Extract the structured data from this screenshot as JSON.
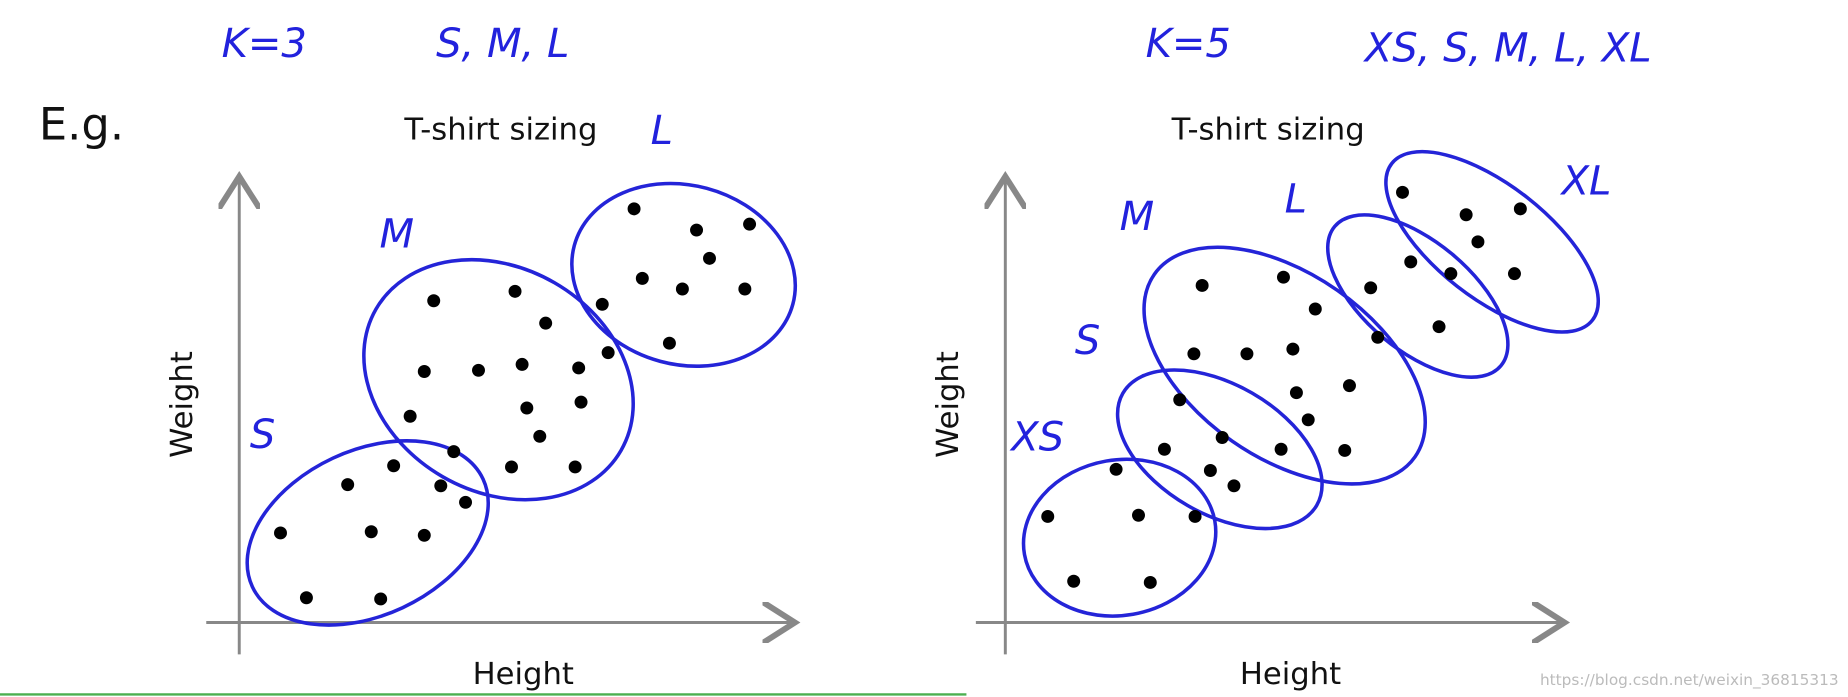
{
  "header": {
    "left_note": [
      "K=3",
      "S, M, L"
    ],
    "right_note": [
      "K=5",
      "XS, S, M, L, XL"
    ]
  },
  "example_label": "E.g.",
  "plots": [
    {
      "title": "T-shirt sizing",
      "y_label": "Weight",
      "x_label": "Height",
      "clusters": [
        "S",
        "M",
        "L"
      ]
    },
    {
      "title": "T-shirt sizing",
      "y_label": "Weight",
      "x_label": "Height",
      "clusters": [
        "XS",
        "S",
        "M",
        "L",
        "XL"
      ]
    }
  ],
  "watermark": "https://blog.csdn.net/weixin_36815313"
}
